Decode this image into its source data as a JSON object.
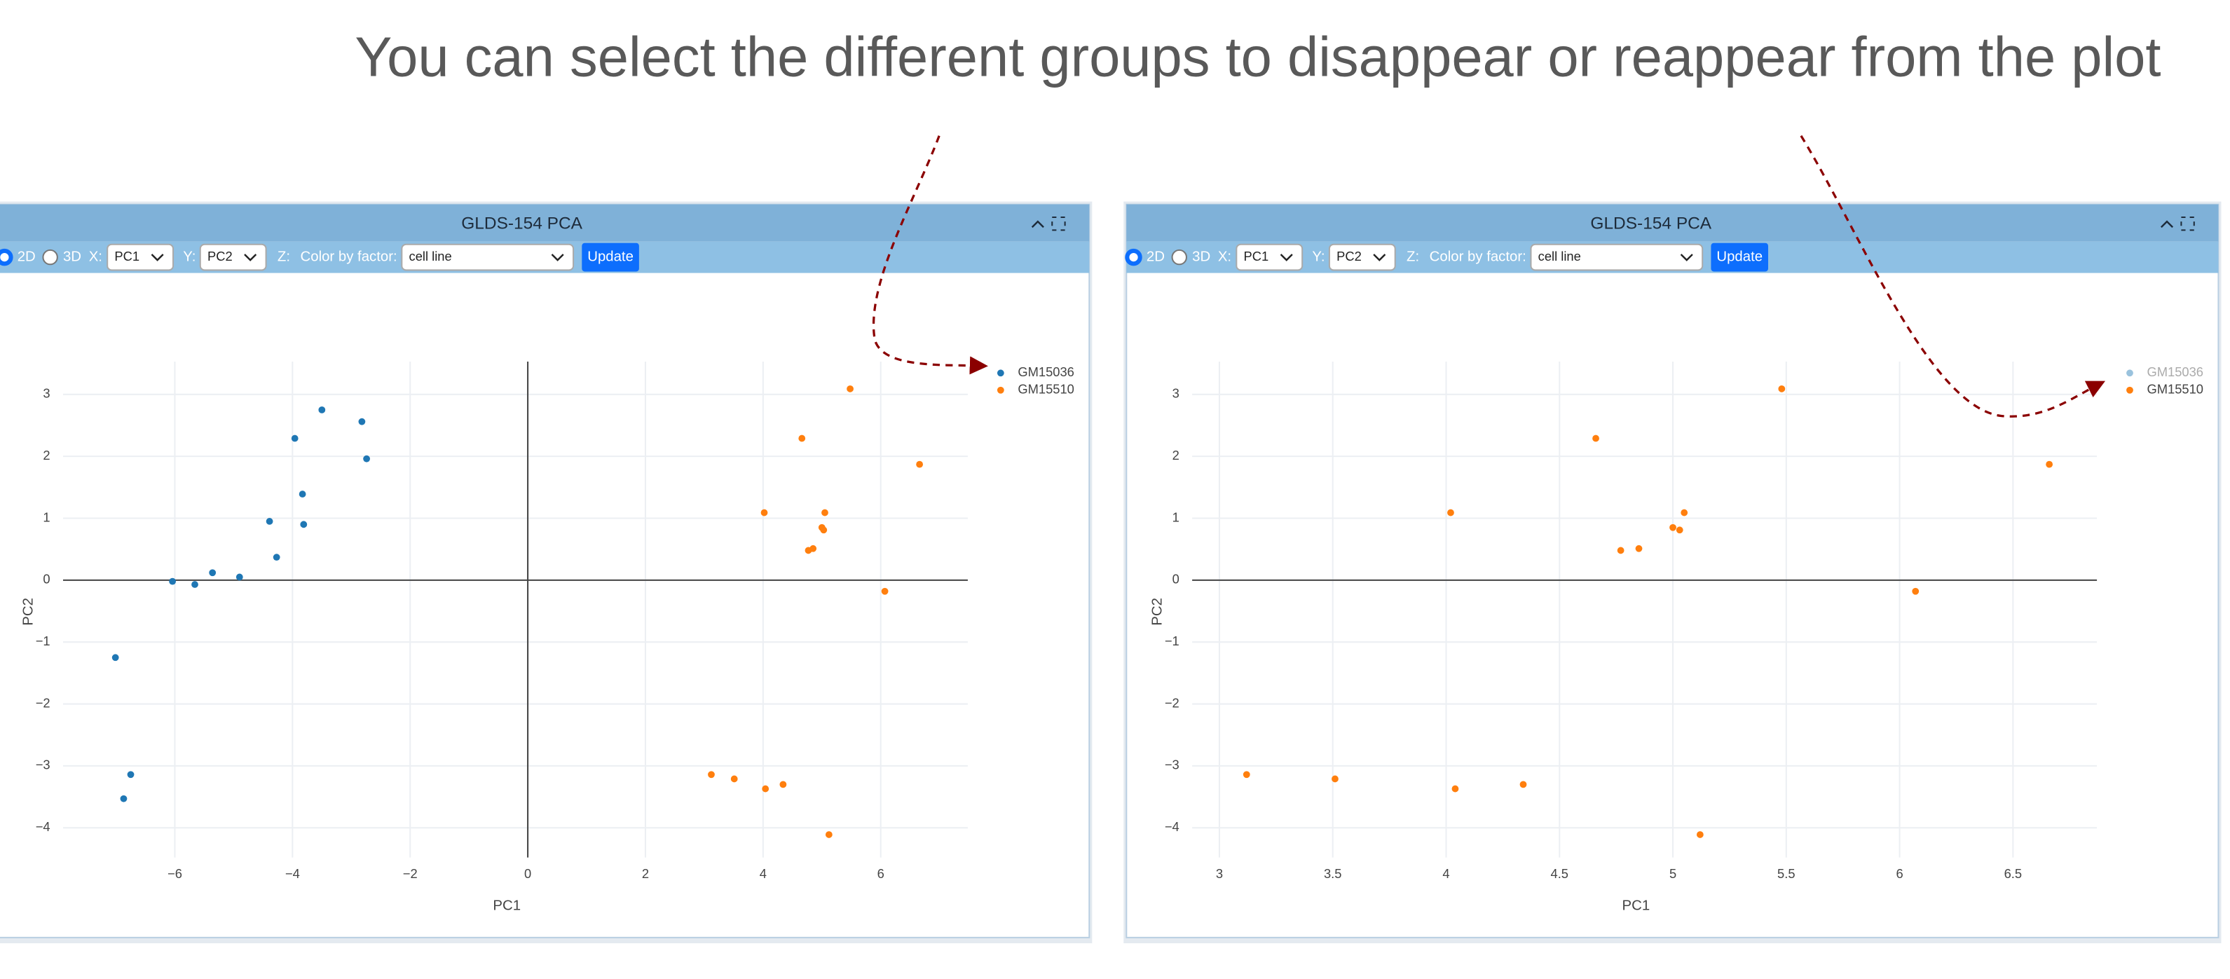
{
  "heading": "You can select the different groups to disappear or reappear from the plot",
  "panels": [
    {
      "title": "GLDS-154 PCA",
      "radio_2d": "2D",
      "radio_3d": "3D",
      "x_label": "X:",
      "x_select": "PC1",
      "y_label": "Y:",
      "y_select": "PC2",
      "z_label": "Z:",
      "color_label": "Color by factor:",
      "color_select": "cell line",
      "button": "Update"
    },
    {
      "title": "GLDS-154 PCA",
      "radio_2d": "2D",
      "radio_3d": "3D",
      "x_label": "X:",
      "x_select": "PC1",
      "y_label": "Y:",
      "y_select": "PC2",
      "z_label": "Z:",
      "color_label": "Color by factor:",
      "color_select": "cell line",
      "button": "Update"
    }
  ],
  "chart_data": [
    {
      "type": "scatter",
      "xlabel": "PC1",
      "ylabel": "PC2",
      "xlim": [
        -7.9,
        7.48
      ],
      "ylim": [
        -4.48,
        3.53
      ],
      "xticks": [
        {
          "value": -6,
          "label": "−6"
        },
        {
          "value": -4,
          "label": "−4"
        },
        {
          "value": -2,
          "label": "−2"
        },
        0,
        2,
        4,
        6
      ],
      "yticks": [
        {
          "value": -4,
          "label": "−4"
        },
        {
          "value": -3,
          "label": "−3"
        },
        {
          "value": -2,
          "label": "−2"
        },
        {
          "value": -1,
          "label": "−1"
        },
        0,
        1,
        2,
        3
      ],
      "grid": true,
      "zeroline": true,
      "series": [
        {
          "name": "GM15036",
          "color": "#1f77b4",
          "x": [
            -3.5,
            -2.82,
            -3.96,
            -2.74,
            -3.83,
            -3.81,
            -4.39,
            -4.27,
            -5.36,
            -4.9,
            -6.04,
            -5.66,
            -7.01,
            -6.75,
            -6.87
          ],
          "values": [
            2.75,
            2.56,
            2.29,
            1.96,
            1.39,
            0.9,
            0.95,
            0.37,
            0.12,
            0.05,
            -0.02,
            -0.07,
            -1.25,
            -3.14,
            -3.53
          ]
        },
        {
          "name": "GM15510",
          "color": "#ff7f0e",
          "x": [
            3.12,
            3.51,
            4.04,
            4.34,
            4.02,
            4.66,
            4.77,
            4.85,
            5.0,
            5.03,
            5.05,
            5.12,
            5.48,
            6.07,
            6.66
          ],
          "values": [
            -3.14,
            -3.21,
            -3.37,
            -3.3,
            1.09,
            2.29,
            0.48,
            0.51,
            0.85,
            0.81,
            1.09,
            -4.11,
            3.09,
            -0.18,
            1.87
          ]
        }
      ]
    },
    {
      "type": "scatter",
      "xlabel": "PC1",
      "ylabel": "PC2",
      "xlim": [
        2.88,
        6.87
      ],
      "ylim": [
        -4.48,
        3.53
      ],
      "xticks": [
        3,
        3.5,
        4,
        4.5,
        5,
        5.5,
        6,
        6.5
      ],
      "yticks": [
        {
          "value": -4,
          "label": "−4"
        },
        {
          "value": -3,
          "label": "−3"
        },
        {
          "value": -2,
          "label": "−2"
        },
        {
          "value": -1,
          "label": "−1"
        },
        0,
        1,
        2,
        3
      ],
      "grid": true,
      "zeroline": true,
      "series": [
        {
          "name": "GM15036",
          "color": "#1f77b4",
          "visible": false
        },
        {
          "name": "GM15510",
          "color": "#ff7f0e",
          "x": [
            3.12,
            3.51,
            4.04,
            4.34,
            4.02,
            4.66,
            4.77,
            4.85,
            5.0,
            5.03,
            5.05,
            5.12,
            5.48,
            6.07,
            6.66
          ],
          "values": [
            -3.14,
            -3.21,
            -3.37,
            -3.3,
            1.09,
            2.29,
            0.48,
            0.51,
            0.85,
            0.81,
            1.09,
            -4.11,
            3.09,
            -0.18,
            1.87
          ]
        }
      ]
    }
  ]
}
